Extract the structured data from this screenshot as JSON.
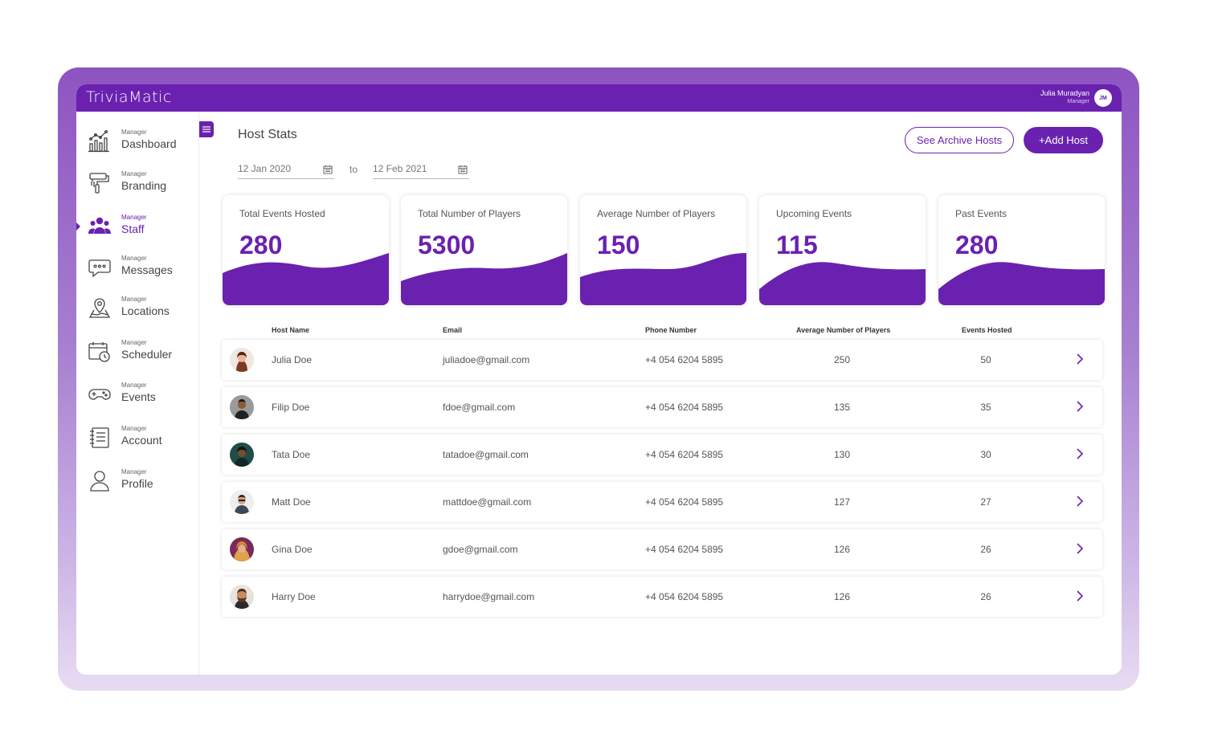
{
  "brand": {
    "logo_text": "TriviaMatic",
    "accent_color": "#6a21b0"
  },
  "user": {
    "name": "Julia Muradyan",
    "role": "Manager",
    "initials": "JM"
  },
  "sidebar": {
    "items": [
      {
        "sub": "Manager",
        "label": "Dashboard",
        "icon": "chart-icon"
      },
      {
        "sub": "Manager",
        "label": "Branding",
        "icon": "paint-roller-icon"
      },
      {
        "sub": "Manager",
        "label": "Staff",
        "icon": "users-icon",
        "active": true
      },
      {
        "sub": "Manager",
        "label": "Messages",
        "icon": "chat-icon"
      },
      {
        "sub": "Manager",
        "label": "Locations",
        "icon": "map-pin-icon"
      },
      {
        "sub": "Manager",
        "label": "Scheduler",
        "icon": "calendar-clock-icon"
      },
      {
        "sub": "Manager",
        "label": "Events",
        "icon": "gamepad-icon"
      },
      {
        "sub": "Manager",
        "label": "Account",
        "icon": "ledger-icon"
      },
      {
        "sub": "Manager",
        "label": "Profile",
        "icon": "user-icon"
      }
    ]
  },
  "header": {
    "title": "Host Stats",
    "archive_button": "See Archive Hosts",
    "add_button": "+Add Host"
  },
  "date_range": {
    "from": "12 Jan 2020",
    "to_label": "to",
    "to": "12 Feb 2021"
  },
  "stats": [
    {
      "title": "Total Events Hosted",
      "value": "280"
    },
    {
      "title": "Total Number of Players",
      "value": "5300"
    },
    {
      "title": "Average Number of Players",
      "value": "150"
    },
    {
      "title": "Upcoming Events",
      "value": "115"
    },
    {
      "title": "Past Events",
      "value": "280"
    }
  ],
  "table": {
    "columns": [
      "Host Name",
      "Email",
      "Phone Number",
      "Average Number of Players",
      "Events Hosted"
    ],
    "rows": [
      {
        "name": "Julia Doe",
        "email": "juliadoe@gmail.com",
        "phone": "+4 054 6204 5895",
        "avg": "250",
        "events": "50"
      },
      {
        "name": "Filip Doe",
        "email": "fdoe@gmail.com",
        "phone": "+4 054 6204 5895",
        "avg": "135",
        "events": "35"
      },
      {
        "name": "Tata Doe",
        "email": "tatadoe@gmail.com",
        "phone": "+4 054 6204 5895",
        "avg": "130",
        "events": "30"
      },
      {
        "name": "Matt Doe",
        "email": "mattdoe@gmail.com",
        "phone": "+4 054 6204 5895",
        "avg": "127",
        "events": "27"
      },
      {
        "name": "Gina Doe",
        "email": "gdoe@gmail.com",
        "phone": "+4 054 6204 5895",
        "avg": "126",
        "events": "26"
      },
      {
        "name": "Harry Doe",
        "email": "harrydoe@gmail.com",
        "phone": "+4 054 6204 5895",
        "avg": "126",
        "events": "26"
      }
    ]
  }
}
